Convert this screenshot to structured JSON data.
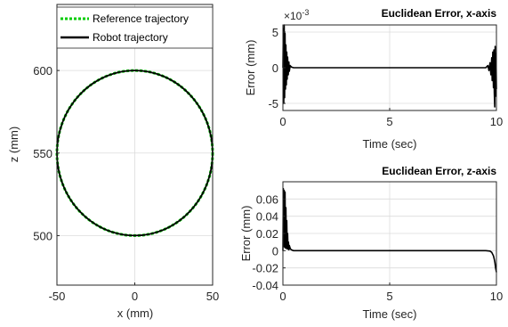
{
  "chart_data": [
    {
      "id": "traj",
      "type": "line",
      "xlabel": "x (mm)",
      "ylabel": "z (mm)",
      "xlim": [
        -50,
        50
      ],
      "ylim": [
        470,
        640
      ],
      "xticks": [
        -50,
        0,
        50
      ],
      "yticks": [
        500,
        550,
        600
      ],
      "grid": true,
      "legend_position": "top",
      "series": [
        {
          "name": "Reference trajectory",
          "color": "#00cc00",
          "style": "dotted",
          "shape": "circle",
          "center": [
            0,
            550
          ],
          "radius": 50
        },
        {
          "name": "Robot trajectory",
          "color": "#000000",
          "style": "solid",
          "shape": "circle",
          "center": [
            0,
            550
          ],
          "radius": 50
        }
      ]
    },
    {
      "id": "errx",
      "type": "line",
      "title": "Euclidean Error, x-axis",
      "xlabel": "Time (sec)",
      "ylabel": "Error (mm)",
      "exponent_label": "×10",
      "exponent_power": "-3",
      "xlim": [
        0,
        10
      ],
      "ylim": [
        -6,
        6
      ],
      "xticks": [
        0,
        5,
        10
      ],
      "yticks": [
        -5,
        0,
        5
      ],
      "grid": true,
      "series": [
        {
          "color": "#000000",
          "x": [
            0,
            0.02,
            0.04,
            0.06,
            0.08,
            0.1,
            0.12,
            0.14,
            0.16,
            0.18,
            0.2,
            0.22,
            0.25,
            0.28,
            0.3,
            0.34,
            0.4,
            0.5,
            1,
            9,
            9.5,
            9.6,
            9.65,
            9.7,
            9.74,
            9.78,
            9.8,
            9.83,
            9.86,
            9.88,
            9.9,
            9.92,
            9.94,
            9.96,
            9.98,
            10
          ],
          "values": [
            0,
            5.5,
            -5,
            6,
            -4.2,
            4.8,
            -3,
            3.2,
            -2.4,
            2.2,
            -1.6,
            1.5,
            -1,
            0.8,
            -0.5,
            0.3,
            0.1,
            0,
            0,
            0,
            0,
            0.3,
            -0.4,
            0.7,
            -1,
            1.4,
            -1.8,
            2.2,
            -2.8,
            2.5,
            -3.5,
            -5.5,
            3,
            -4,
            2,
            -3
          ]
        }
      ]
    },
    {
      "id": "errz",
      "type": "line",
      "title": "Euclidean Error, z-axis",
      "xlabel": "Time (sec)",
      "ylabel": "Error (mm)",
      "xlim": [
        0,
        10
      ],
      "ylim": [
        -0.04,
        0.08
      ],
      "xticks": [
        0,
        5,
        10
      ],
      "yticks": [
        -0.04,
        -0.02,
        0,
        0.02,
        0.04,
        0.06
      ],
      "ytick_labels": [
        "-0.04",
        "-0.02",
        "0",
        "0.02",
        "0.04",
        "0.06"
      ],
      "grid": true,
      "series": [
        {
          "color": "#000000",
          "x": [
            0,
            0.02,
            0.04,
            0.06,
            0.08,
            0.1,
            0.12,
            0.14,
            0.16,
            0.18,
            0.2,
            0.22,
            0.24,
            0.26,
            0.28,
            0.3,
            0.35,
            0.4,
            0.5,
            1,
            9,
            9.5,
            9.7,
            9.78,
            9.82,
            9.86,
            9.9,
            9.93,
            9.96,
            10
          ],
          "values": [
            0,
            0.072,
            0.005,
            0.07,
            0.004,
            0.068,
            0.003,
            0.05,
            0.003,
            0.035,
            0.002,
            0.02,
            0.002,
            0.01,
            0.001,
            0.006,
            0.002,
            0.001,
            0,
            0,
            0,
            0,
            -0.0005,
            -0.002,
            -0.004,
            -0.006,
            -0.01,
            -0.014,
            -0.02,
            -0.025
          ]
        }
      ]
    }
  ]
}
